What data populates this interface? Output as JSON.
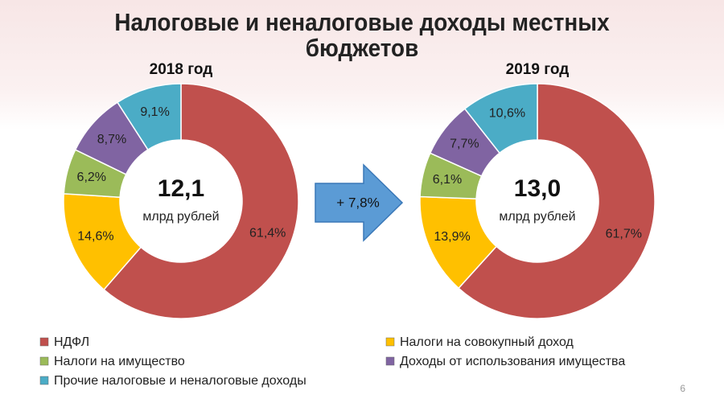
{
  "title": "Налоговые и неналоговые доходы местных бюджетов",
  "change_label": "+ 7,8%",
  "page_number": "6",
  "chart_data": [
    {
      "type": "donut",
      "subtitle": "2018 год",
      "center_label": "12,1",
      "center_unit": "млрд рублей",
      "categories": [
        "НДФЛ",
        "Налоги на совокупный доход",
        "Налоги на имущество",
        "Доходы от использования имущества",
        "Прочие налоговые и неналоговые доходы"
      ],
      "values": [
        61.4,
        14.6,
        6.2,
        8.7,
        9.1
      ],
      "value_labels": [
        "61,4%",
        "14,6%",
        "6,2%",
        "8,7%",
        "9,1%"
      ],
      "colors": [
        "#c0504d",
        "#ffc000",
        "#9bbb59",
        "#8064a2",
        "#4bacc6"
      ]
    },
    {
      "type": "donut",
      "subtitle": "2019 год",
      "center_label": "13,0",
      "center_unit": "млрд рублей",
      "categories": [
        "НДФЛ",
        "Налоги на совокупный доход",
        "Налоги на имущество",
        "Доходы от использования имущества",
        "Прочие налоговые и неналоговые доходы"
      ],
      "values": [
        61.7,
        13.9,
        6.1,
        7.7,
        10.6
      ],
      "value_labels": [
        "61,7%",
        "13,9%",
        "6,1%",
        "7,7%",
        "10,6%"
      ],
      "colors": [
        "#c0504d",
        "#ffc000",
        "#9bbb59",
        "#8064a2",
        "#4bacc6"
      ]
    }
  ]
}
